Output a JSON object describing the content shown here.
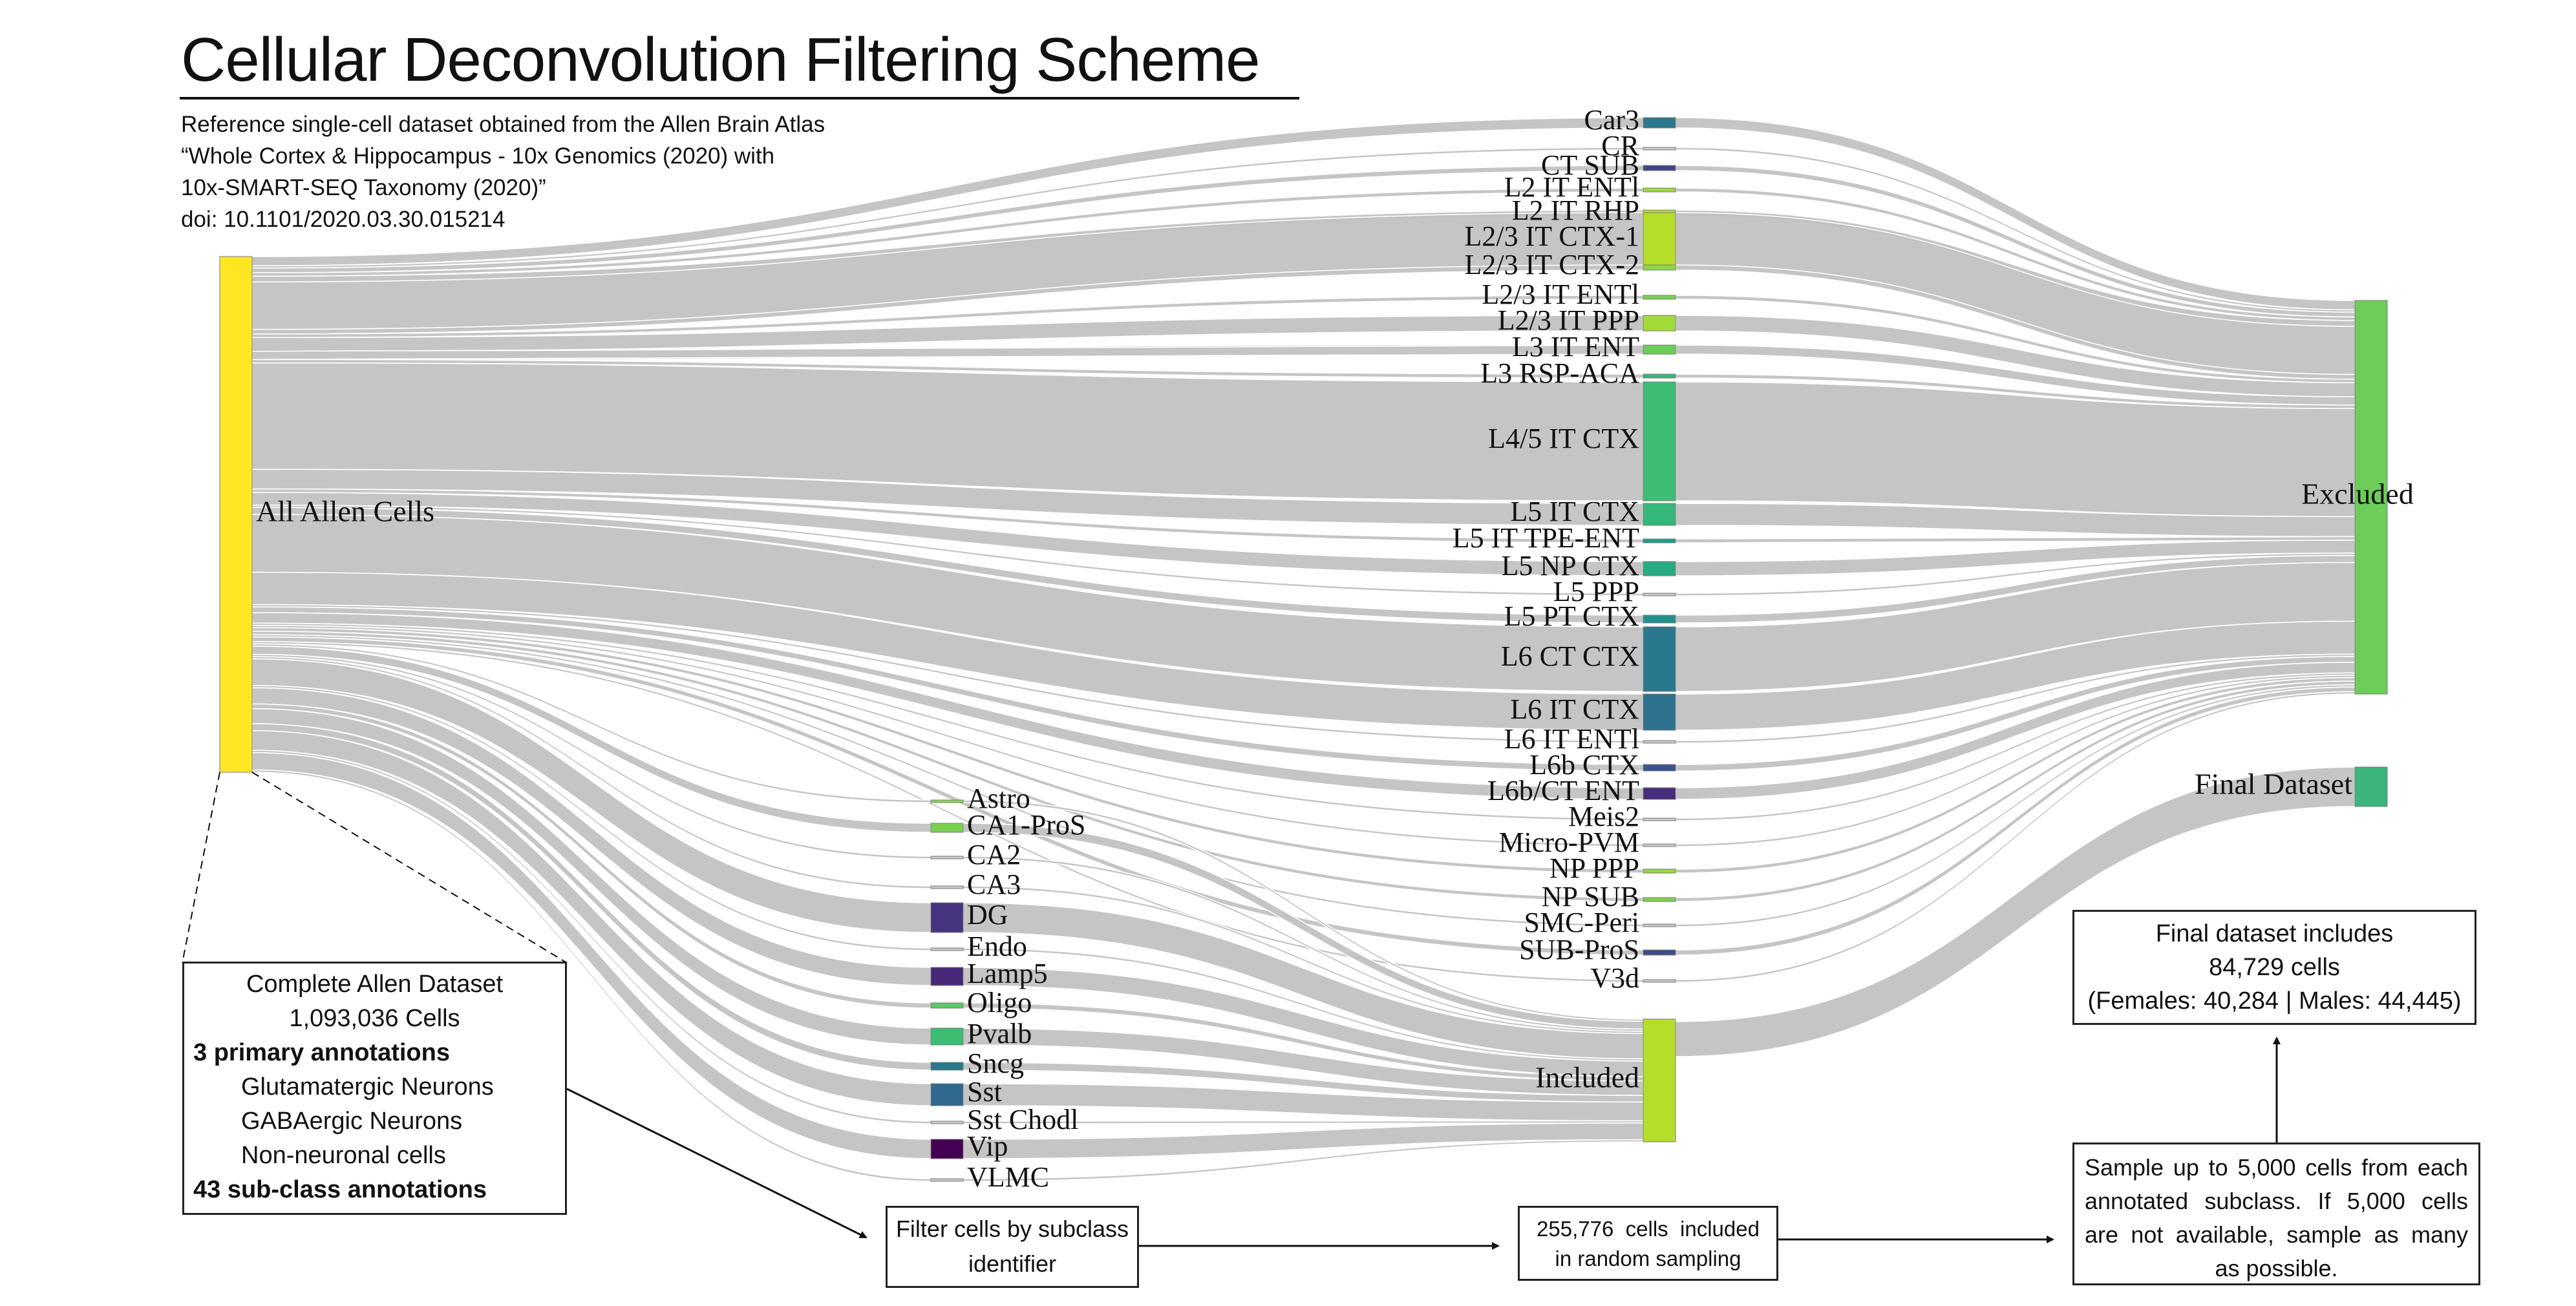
{
  "header": {
    "title": "Cellular Deconvolution Filtering Scheme",
    "subtitle_lines": [
      "Reference single-cell dataset obtained from the Allen Brain Atlas",
      "“Whole Cortex & Hippocampus - 10x Genomics (2020) with",
      "10x-SMART-SEQ Taxonomy (2020)”",
      "doi: 10.1101/2020.03.30.015214"
    ]
  },
  "sankey": {
    "source": {
      "label": "All Allen Cells",
      "color": "#FDE725"
    },
    "link_color": "#c2c2c2",
    "included_node": {
      "label": "Included",
      "color": "#B5DE2B"
    },
    "excluded_node": {
      "label": "Excluded",
      "color": "#6CCE59"
    },
    "final_node": {
      "label": "Final Dataset",
      "color": "#3BB57A"
    },
    "included_subclasses": [
      {
        "label": "Astro",
        "color": "#8FD744"
      },
      {
        "label": "CA1-ProS",
        "color": "#7AD151"
      },
      {
        "label": "CA2",
        "color": "#c8c8c8"
      },
      {
        "label": "CA3",
        "color": "#c8c8c8"
      },
      {
        "label": "DG",
        "color": "#463480"
      },
      {
        "label": "Endo",
        "color": "#c8c8c8"
      },
      {
        "label": "Lamp5",
        "color": "#482878"
      },
      {
        "label": "Oligo",
        "color": "#5CC863"
      },
      {
        "label": "Pvalb",
        "color": "#3DBC74"
      },
      {
        "label": "Sncg",
        "color": "#2A788E"
      },
      {
        "label": "Sst",
        "color": "#31688E"
      },
      {
        "label": "Sst Chodl",
        "color": "#c8c8c8"
      },
      {
        "label": "Vip",
        "color": "#440154"
      },
      {
        "label": "VLMC",
        "color": "#c8c8c8"
      }
    ],
    "excluded_subclasses": [
      {
        "label": "Car3",
        "color": "#2A788E"
      },
      {
        "label": "CR",
        "color": "#c8c8c8"
      },
      {
        "label": "CT SUB",
        "color": "#414487"
      },
      {
        "label": "L2 IT ENTl",
        "color": "#9FDA3A"
      },
      {
        "label": "L2 IT RHP",
        "color": "#B5DE2B"
      },
      {
        "label": "L2/3 IT CTX-1",
        "color": "#B5DE2B"
      },
      {
        "label": "L2/3 IT CTX-2",
        "color": "#8FD744"
      },
      {
        "label": "L2/3 IT ENTl",
        "color": "#7AD151"
      },
      {
        "label": "L2/3 IT PPP",
        "color": "#A2DA37"
      },
      {
        "label": "L3 IT ENT",
        "color": "#6CCE59"
      },
      {
        "label": "L3 RSP-ACA",
        "color": "#3BB57A"
      },
      {
        "label": "L4/5 IT CTX",
        "color": "#3DBC74"
      },
      {
        "label": "L5 IT CTX",
        "color": "#35B779"
      },
      {
        "label": "L5 IT TPE-ENT",
        "color": "#1F9E89"
      },
      {
        "label": "L5 NP CTX",
        "color": "#25AB82"
      },
      {
        "label": "L5 PPP",
        "color": "#c8c8c8"
      },
      {
        "label": "L5 PT CTX",
        "color": "#21908C"
      },
      {
        "label": "L6 CT CTX",
        "color": "#2A788E"
      },
      {
        "label": "L6 IT CTX",
        "color": "#2C728E"
      },
      {
        "label": "L6 IT ENTl",
        "color": "#c8c8c8"
      },
      {
        "label": "L6b CTX",
        "color": "#3B528B"
      },
      {
        "label": "L6b/CT ENT",
        "color": "#472D7B"
      },
      {
        "label": "Meis2",
        "color": "#c8c8c8"
      },
      {
        "label": "Micro-PVM",
        "color": "#c8c8c8"
      },
      {
        "label": "NP PPP",
        "color": "#95D840"
      },
      {
        "label": "NP SUB",
        "color": "#7AD151"
      },
      {
        "label": "SMC-Peri",
        "color": "#c8c8c8"
      },
      {
        "label": "SUB-ProS",
        "color": "#3E4A89"
      },
      {
        "label": "V3d",
        "color": "#c8c8c8"
      }
    ]
  },
  "boxes": {
    "complete": {
      "title": "Complete Allen Dataset",
      "cells": "1,093,036 Cells",
      "primary_heading": "3 primary annotations",
      "primary_items": [
        "Glutamatergic Neurons",
        "GABAergic Neurons",
        "Non-neuronal cells"
      ],
      "subclass_heading": "43 sub-class annotations"
    },
    "filter": {
      "lines": [
        "Filter cells by subclass",
        "identifier"
      ]
    },
    "sample255": {
      "lines": [
        "255,776  cells  included",
        "in random sampling"
      ]
    },
    "sample5000": {
      "text": "Sample up to 5,000 cells from each annotated subclass. If 5,000 cells are not available, sample as many as possible."
    },
    "final": {
      "lines": [
        "Final dataset includes",
        "84,729 cells",
        "(Females: 40,284 | Males: 44,445)"
      ]
    }
  }
}
